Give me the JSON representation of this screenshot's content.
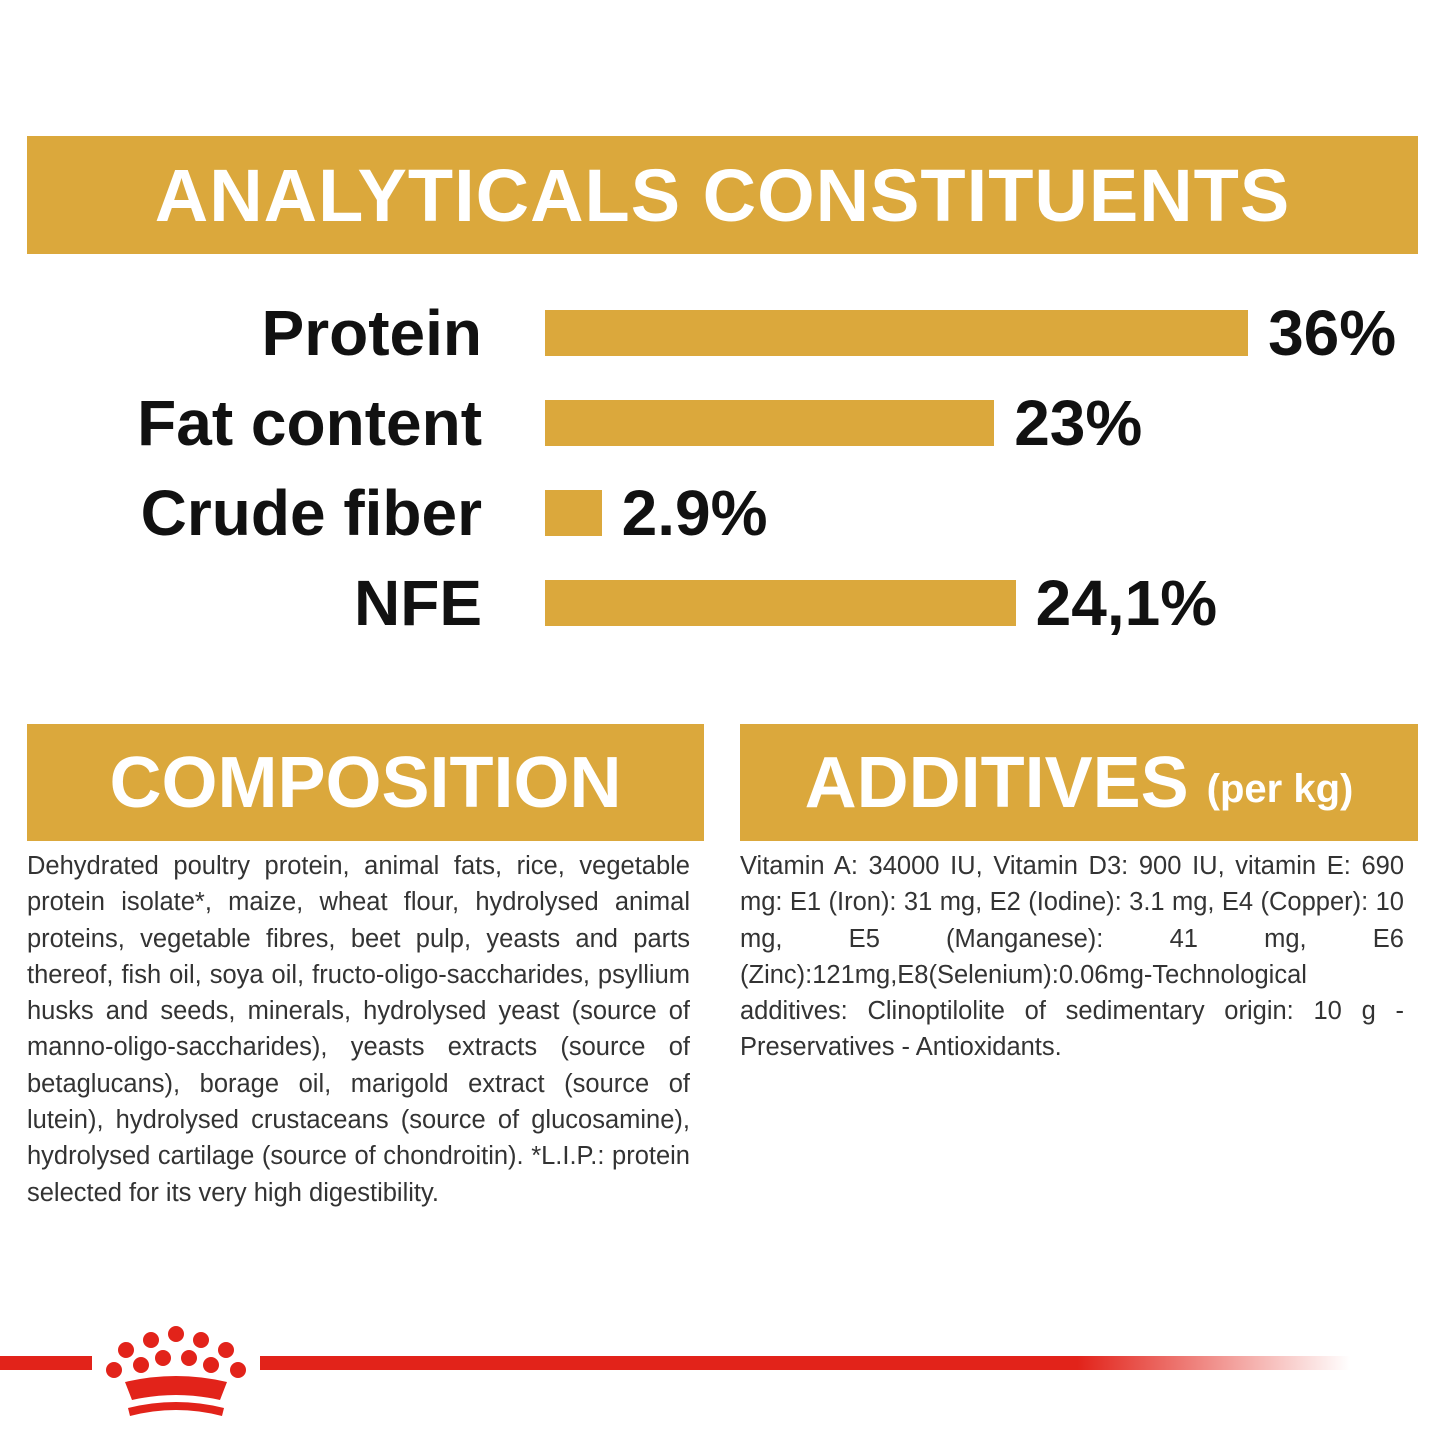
{
  "chart_data": {
    "type": "bar",
    "orientation": "horizontal",
    "title": "ANALYTICALS CONSTITUENTS",
    "categories": [
      "Protein",
      "Fat content",
      "Crude fiber",
      "NFE"
    ],
    "values": [
      36,
      23,
      2.9,
      24.1
    ],
    "value_labels": [
      "36%",
      "23%",
      "2.9%",
      "24,1%"
    ],
    "color": "#dba83c"
  },
  "composition": {
    "title": "COMPOSITION",
    "text": "Dehydrated poultry protein, animal fats, rice, vegetable protein isolate*, maize, wheat flour, hydrolysed animal proteins, vegetable fibres, beet pulp, yeasts and parts thereof, fish oil, soya oil, fructo-oligo-saccharides, psyllium husks and seeds, minerals, hydrolysed yeast (source of manno-oligo-saccharides), yeasts extracts (source of betaglucans), borage oil, marigold extract (source of lutein), hydrolysed crustaceans (source of glucosamine), hydrolysed cartilage (source of chondroitin). *L.I.P.: protein selected for its very high digestibility."
  },
  "additives": {
    "title": "ADDITIVES",
    "note": "(per kg)",
    "text": "Vitamin A: 34000 IU, Vitamin D3: 900 IU, vitamin E: 690 mg: E1 (Iron): 31 mg, E2 (Iodine): 3.1 mg, E4 (Copper): 10 mg, E5 (Manganese): 41 mg, E6 (Zinc):121mg,E8(Selenium):0.06mg-Technological additives: Clinoptilolite of sedimentary origin: 10 g - Preservatives - Antioxidants."
  }
}
